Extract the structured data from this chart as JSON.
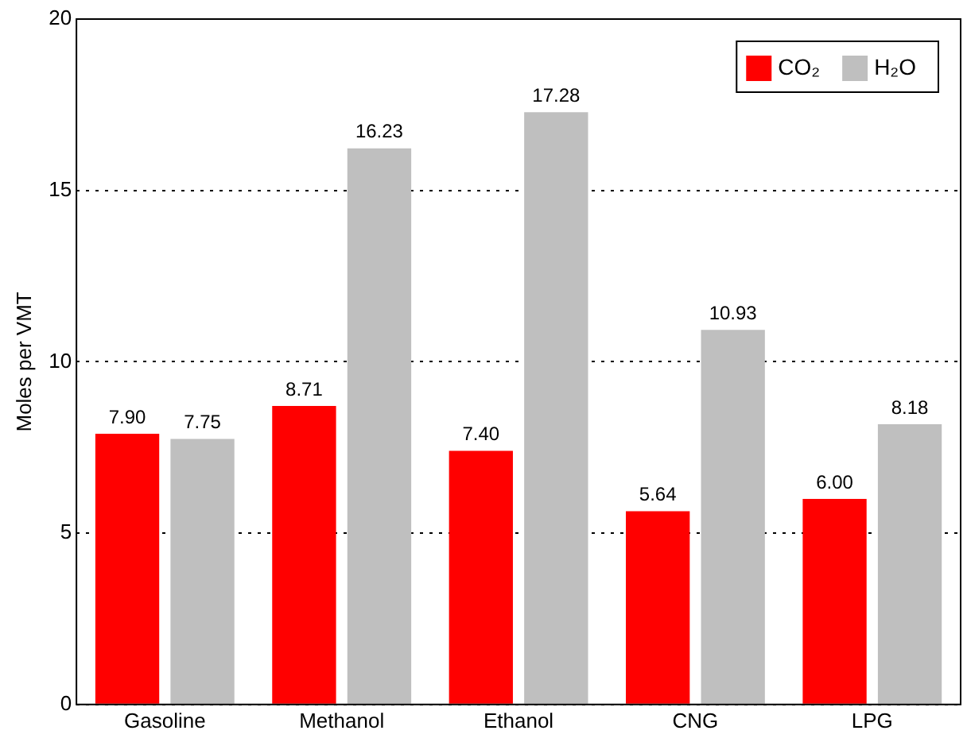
{
  "chart_data": {
    "type": "bar",
    "ylabel": "Moles per VMT",
    "categories": [
      "Gasoline",
      "Methanol",
      "Ethanol",
      "CNG",
      "LPG"
    ],
    "series": [
      {
        "name": "CO₂",
        "color": "#ff0000",
        "values": [
          7.9,
          8.71,
          7.4,
          5.64,
          6.0
        ],
        "value_labels": [
          "7.90",
          "8.71",
          "7.40",
          "5.64",
          "6.00"
        ]
      },
      {
        "name": "H₂O",
        "color": "#bfbfbf",
        "values": [
          7.75,
          16.23,
          17.28,
          10.93,
          8.18
        ],
        "value_labels": [
          "7.75",
          "16.23",
          "17.28",
          "10.93",
          "8.18"
        ]
      }
    ],
    "ylim": [
      0,
      20
    ],
    "yticks": [
      0,
      5,
      10,
      15,
      20
    ],
    "grid": "y",
    "line_style": "dotted",
    "legend": "top right"
  }
}
